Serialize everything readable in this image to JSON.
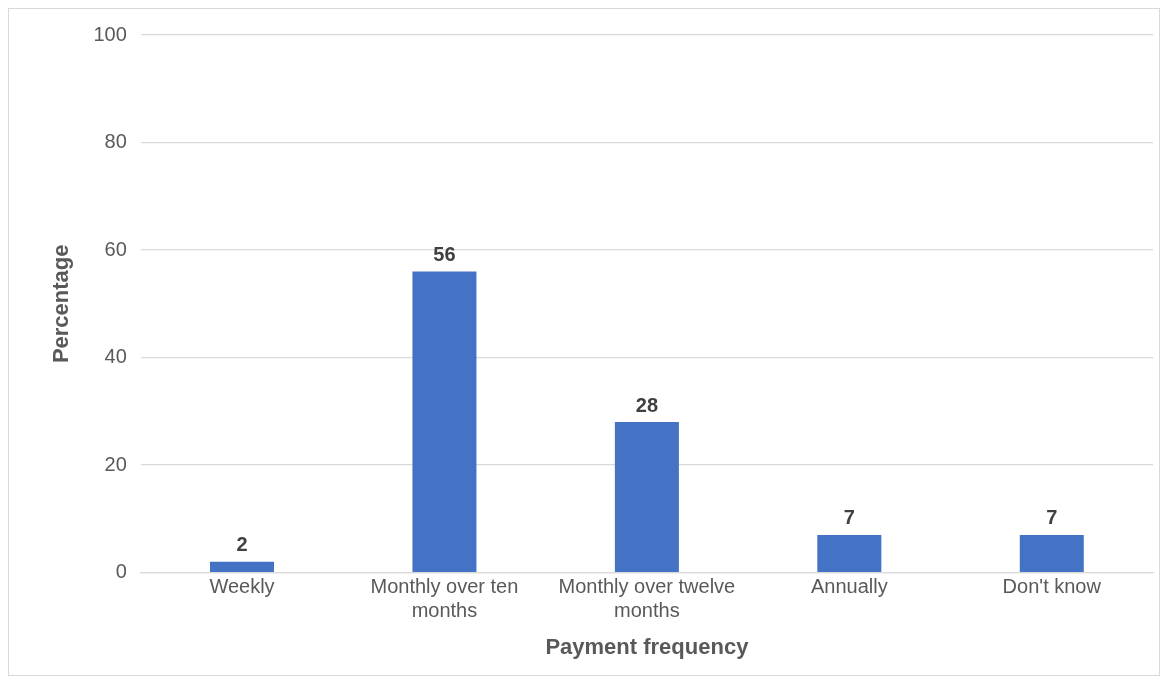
{
  "chart_data": {
    "type": "bar",
    "xlabel": "Payment frequency",
    "ylabel": "Percentage",
    "categories": [
      "Weekly",
      "Monthly over ten months",
      "Monthly over twelve months",
      "Annually",
      "Don't know"
    ],
    "values": [
      2,
      56,
      28,
      7,
      7
    ],
    "color": "#4472c4",
    "ylim": [
      0,
      100
    ],
    "yticks": [
      0,
      20,
      40,
      60,
      80,
      100
    ],
    "grid": "y",
    "legend": false,
    "data_labels": true
  }
}
